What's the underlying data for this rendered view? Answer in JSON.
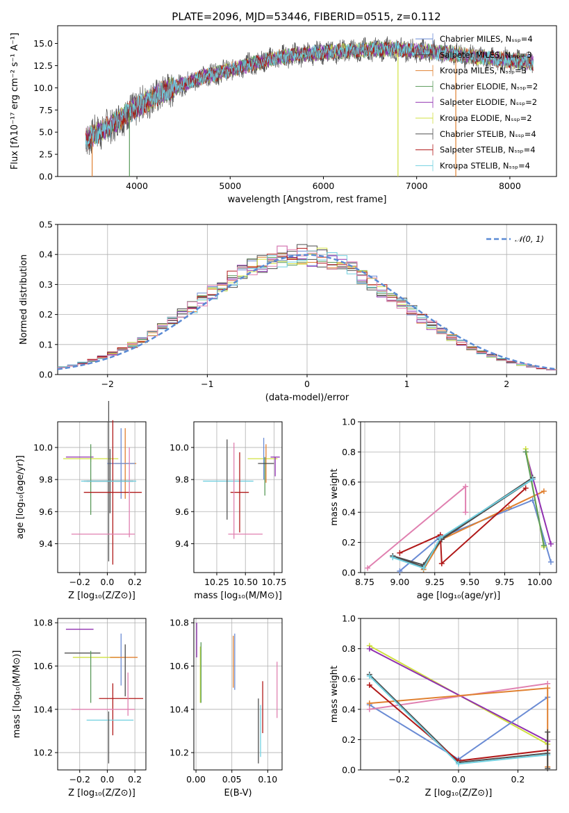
{
  "figure": {
    "title": "PLATE=2096, MJD=53446, FIBERID=0515, z=0.112"
  },
  "colors": {
    "Chabrier MILES": "#6a8bd4",
    "Salpeter MILES": "#4a4a4a",
    "Kroupa MILES": "#e08030",
    "Chabrier ELODIE": "#5a9a5a",
    "Salpeter ELODIE": "#9030b0",
    "Kroupa ELODIE": "#d0e040",
    "Chabrier STELIB": "#505050",
    "Salpeter STELIB": "#b01818",
    "Kroupa STELIB": "#70d0e0",
    "pink": "#e080b0",
    "gaussian": "#5a8ad4",
    "grid": "#b0b0b0"
  },
  "chart_data": [
    {
      "id": "spectrum",
      "type": "line",
      "xlabel": "wavelength [Angstrom, rest frame]",
      "ylabel": "Flux [fλ10⁻¹⁷ erg cm⁻² s⁻¹ A⁻¹]",
      "xlim": [
        3150,
        8500
      ],
      "ylim": [
        0,
        17
      ],
      "xticks": [
        "4000",
        "5000",
        "6000",
        "7000",
        "8000"
      ],
      "yticks": [
        "0.0",
        "2.5",
        "5.0",
        "7.5",
        "10.0",
        "12.5",
        "15.0"
      ],
      "legend_position": "upper right",
      "series": [
        {
          "name": "Chabrier MILES, Nₛₛₚ=4",
          "color": "Chabrier MILES"
        },
        {
          "name": "Salpeter MILES, Nₛₛₚ=3",
          "color": "Salpeter MILES"
        },
        {
          "name": "Kroupa MILES, Nₛₛₚ=3",
          "color": "Kroupa MILES"
        },
        {
          "name": "Chabrier ELODIE, Nₛₛₚ=2",
          "color": "Chabrier ELODIE"
        },
        {
          "name": "Salpeter ELODIE, Nₛₛₚ=2",
          "color": "Salpeter ELODIE"
        },
        {
          "name": "Kroupa ELODIE, Nₛₛₚ=2",
          "color": "Kroupa ELODIE"
        },
        {
          "name": "Chabrier STELIB, Nₛₛₚ=4",
          "color": "Chabrier STELIB"
        },
        {
          "name": "Salpeter STELIB, Nₛₛₚ=4",
          "color": "Salpeter STELIB"
        },
        {
          "name": "Kroupa STELIB, Nₛₛₚ=4",
          "color": "Kroupa STELIB"
        }
      ],
      "continuum": [
        [
          3450,
          4.2
        ],
        [
          3700,
          5.6
        ],
        [
          4000,
          7.8
        ],
        [
          4300,
          9.6
        ],
        [
          4700,
          11.2
        ],
        [
          5100,
          12.3
        ],
        [
          5500,
          13.4
        ],
        [
          5900,
          13.9
        ],
        [
          6300,
          14.2
        ],
        [
          6700,
          14.4
        ],
        [
          7000,
          14.2
        ],
        [
          7400,
          13.8
        ],
        [
          7800,
          13.3
        ],
        [
          8250,
          12.8
        ]
      ],
      "vertical_drops": [
        {
          "x": 3520,
          "color": "Kroupa MILES"
        },
        {
          "x": 3920,
          "color": "Chabrier ELODIE"
        },
        {
          "x": 6800,
          "color": "Kroupa ELODIE"
        },
        {
          "x": 7420,
          "color": "Kroupa MILES"
        }
      ]
    },
    {
      "id": "residuals",
      "type": "histogram",
      "xlabel": "(data-model)/error",
      "ylabel": "Normed distribution",
      "xlim": [
        -2.5,
        2.5
      ],
      "ylim": [
        0,
        0.5
      ],
      "xticks": [
        "−2",
        "−1",
        "0",
        "1",
        "2"
      ],
      "yticks": [
        "0.0",
        "0.1",
        "0.2",
        "0.3",
        "0.4",
        "0.5"
      ],
      "legend": "𝒩(0, 1)",
      "bin_width": 0.1,
      "base_curve": "gaussian"
    },
    {
      "id": "age-vs-Z",
      "type": "scatter",
      "xlabel": "Z [log₁₀(Z/Z⊙)]",
      "ylabel": "age  [log₁₀(age/yr)]",
      "xlim": [
        -0.36,
        0.28
      ],
      "ylim": [
        9.22,
        10.16
      ],
      "xticks": [
        "−0.2",
        "0.0",
        "0.2"
      ],
      "xtick_values": [
        -0.2,
        0.0,
        0.2
      ],
      "yticks": [
        "9.4",
        "9.6",
        "9.8",
        "10.0"
      ],
      "ytick_values": [
        9.4,
        9.6,
        9.8,
        10.0
      ],
      "points": [
        {
          "x": -0.12,
          "xerr": 0.2,
          "y": 9.93,
          "yerr": 0.02,
          "color": "Kroupa ELODIE"
        },
        {
          "x": -0.2,
          "xerr": 0.1,
          "y": 9.94,
          "yerr": 0.01,
          "color": "Salpeter ELODIE"
        },
        {
          "x": -0.12,
          "xerr": 0.01,
          "y": 9.8,
          "yerr": 0.22,
          "color": "Chabrier ELODIE"
        },
        {
          "x": 0.13,
          "xerr": 0.08,
          "y": 9.9,
          "yerr": 0.22,
          "color": "Kroupa MILES"
        },
        {
          "x": 0.1,
          "xerr": 0.1,
          "y": 9.9,
          "yerr": 0.22,
          "color": "Chabrier MILES"
        },
        {
          "x": 0.02,
          "xerr": 0.17,
          "y": 9.79,
          "yerr": 0.2,
          "color": "Salpeter MILES"
        },
        {
          "x": 0.01,
          "xerr": 0.18,
          "y": 9.79,
          "yerr": 0.5,
          "color": "Chabrier STELIB"
        },
        {
          "x": 0.04,
          "xerr": 0.21,
          "y": 9.72,
          "yerr": 0.45,
          "color": "Salpeter STELIB"
        },
        {
          "x": 0.16,
          "xerr": 0.01,
          "y": 9.72,
          "yerr": 0.28,
          "color": "pink"
        },
        {
          "x": -0.03,
          "xerr": 0.23,
          "y": 9.46,
          "yerr": 0.01,
          "color": "pink"
        },
        {
          "x": 0.01,
          "xerr": 0.2,
          "y": 9.79,
          "yerr": 0.01,
          "color": "Kroupa STELIB"
        }
      ]
    },
    {
      "id": "age-vs-mass",
      "type": "scatter",
      "xlabel": "mass [log₁₀(M/M⊙)]",
      "xlim": [
        10.05,
        10.82
      ],
      "ylim": [
        9.22,
        10.16
      ],
      "xticks": [
        "10.25",
        "10.50",
        "10.75"
      ],
      "xtick_values": [
        10.25,
        10.5,
        10.75
      ],
      "yticks": [
        "9.4",
        "9.6",
        "9.8",
        "10.0"
      ],
      "ytick_values": [
        9.4,
        9.6,
        9.8,
        10.0
      ],
      "points": [
        {
          "x": 10.35,
          "xerr": 0.22,
          "y": 9.79,
          "yerr": 0.01,
          "color": "Kroupa STELIB"
        },
        {
          "x": 10.34,
          "xerr": 0.01,
          "y": 9.8,
          "yerr": 0.25,
          "color": "Chabrier STELIB"
        },
        {
          "x": 10.45,
          "xerr": 0.08,
          "y": 9.72,
          "yerr": 0.25,
          "color": "Salpeter STELIB"
        },
        {
          "x": 10.4,
          "xerr": 0.01,
          "y": 9.73,
          "yerr": 0.3,
          "color": "pink"
        },
        {
          "x": 10.5,
          "xerr": 0.15,
          "y": 9.46,
          "yerr": 0.01,
          "color": "pink"
        },
        {
          "x": 10.65,
          "xerr": 0.13,
          "y": 9.93,
          "yerr": 0.01,
          "color": "Kroupa ELODIE"
        },
        {
          "x": 10.66,
          "xerr": 0.01,
          "y": 9.93,
          "yerr": 0.13,
          "color": "Chabrier MILES"
        },
        {
          "x": 10.68,
          "xerr": 0.01,
          "y": 9.9,
          "yerr": 0.12,
          "color": "Kroupa MILES"
        },
        {
          "x": 10.67,
          "xerr": 0.01,
          "y": 9.82,
          "yerr": 0.12,
          "color": "Chabrier ELODIE"
        },
        {
          "x": 10.76,
          "xerr": 0.04,
          "y": 9.94,
          "yerr": 0.01,
          "color": "Salpeter ELODIE"
        },
        {
          "x": 10.76,
          "xerr": 0.01,
          "y": 9.88,
          "yerr": 0.06,
          "color": "Salpeter ELODIE"
        },
        {
          "x": 10.68,
          "xerr": 0.07,
          "y": 9.9,
          "yerr": 0.01,
          "color": "Salpeter MILES"
        }
      ]
    },
    {
      "id": "weight-vs-age",
      "type": "line",
      "xlabel": "age  [log₁₀(age/yr)]",
      "ylabel": "mass weight",
      "xlim": [
        8.72,
        10.12
      ],
      "ylim": [
        0,
        1.0
      ],
      "xticks": [
        "8.75",
        "9.00",
        "9.25",
        "9.50",
        "9.75",
        "10.00"
      ],
      "xtick_values": [
        8.75,
        9.0,
        9.25,
        9.5,
        9.75,
        10.0
      ],
      "yticks": [
        "0.0",
        "0.2",
        "0.4",
        "0.6",
        "0.8",
        "1.0"
      ],
      "ytick_values": [
        0,
        0.2,
        0.4,
        0.6,
        0.8,
        1.0
      ],
      "series": [
        {
          "color": "pink",
          "x": [
            8.77,
            9.47,
            9.47
          ],
          "y": [
            0.03,
            0.57,
            0.4
          ]
        },
        {
          "color": "Chabrier MILES",
          "x": [
            9.0,
            9.28,
            9.95,
            10.08
          ],
          "y": [
            0.01,
            0.23,
            0.48,
            0.07
          ]
        },
        {
          "color": "Kroupa MILES",
          "x": [
            9.17,
            9.3,
            9.78,
            10.03
          ],
          "y": [
            0.02,
            0.22,
            0.43,
            0.54
          ]
        },
        {
          "color": "Salpeter MILES",
          "x": [
            8.95,
            9.16,
            9.3,
            9.95
          ],
          "y": [
            0.11,
            0.04,
            0.22,
            0.62
          ]
        },
        {
          "color": "Salpeter ELODIE",
          "x": [
            9.9,
            10.08
          ],
          "y": [
            0.8,
            0.19
          ]
        },
        {
          "color": "Kroupa ELODIE",
          "x": [
            9.9,
            10.03
          ],
          "y": [
            0.82,
            0.17
          ]
        },
        {
          "color": "Chabrier ELODIE",
          "x": [
            9.9,
            10.03
          ],
          "y": [
            0.8,
            0.18
          ]
        },
        {
          "color": "Chabrier STELIB",
          "x": [
            8.95,
            9.17,
            9.29,
            9.95
          ],
          "y": [
            0.11,
            0.05,
            0.22,
            0.63
          ]
        },
        {
          "color": "Salpeter STELIB",
          "x": [
            9.0,
            9.29,
            9.3,
            9.9
          ],
          "y": [
            0.13,
            0.25,
            0.06,
            0.56
          ]
        },
        {
          "color": "Kroupa STELIB",
          "x": [
            8.95,
            9.17,
            9.29,
            9.95
          ],
          "y": [
            0.1,
            0.03,
            0.23,
            0.62
          ]
        }
      ]
    },
    {
      "id": "mass-vs-Z",
      "type": "scatter",
      "xlabel": "Z [log₁₀(Z/Z⊙)]",
      "ylabel": "mass [log₁₀(M/M⊙)]",
      "xlim": [
        -0.36,
        0.28
      ],
      "ylim": [
        10.12,
        10.82
      ],
      "xticks": [
        "−0.2",
        "0.0",
        "0.2"
      ],
      "xtick_values": [
        -0.2,
        0.0,
        0.2
      ],
      "yticks": [
        "10.2",
        "10.4",
        "10.6",
        "10.8"
      ],
      "ytick_values": [
        10.2,
        10.4,
        10.6,
        10.8
      ],
      "points": [
        {
          "x": -0.2,
          "xerr": 0.1,
          "y": 10.77,
          "yerr": 0.01,
          "color": "Salpeter ELODIE"
        },
        {
          "x": -0.18,
          "xerr": 0.13,
          "y": 10.66,
          "yerr": 0.01,
          "color": "Chabrier STELIB"
        },
        {
          "x": -0.08,
          "xerr": 0.17,
          "y": 10.64,
          "yerr": 0.01,
          "color": "Kroupa ELODIE"
        },
        {
          "x": -0.12,
          "xerr": 0.01,
          "y": 10.55,
          "yerr": 0.12,
          "color": "Chabrier ELODIE"
        },
        {
          "x": 0.1,
          "xerr": 0.01,
          "y": 10.63,
          "yerr": 0.12,
          "color": "Chabrier MILES"
        },
        {
          "x": 0.12,
          "xerr": 0.1,
          "y": 10.64,
          "yerr": 0.01,
          "color": "Kroupa MILES"
        },
        {
          "x": 0.13,
          "xerr": 0.01,
          "y": 10.58,
          "yerr": 0.12,
          "color": "Salpeter MILES"
        },
        {
          "x": 0.1,
          "xerr": 0.16,
          "y": 10.45,
          "yerr": 0.01,
          "color": "Salpeter STELIB"
        },
        {
          "x": 0.04,
          "xerr": 0.01,
          "y": 10.4,
          "yerr": 0.12,
          "color": "Salpeter STELIB"
        },
        {
          "x": 0.15,
          "xerr": 0.01,
          "y": 10.47,
          "yerr": 0.1,
          "color": "pink"
        },
        {
          "x": -0.03,
          "xerr": 0.23,
          "y": 10.4,
          "yerr": 0.01,
          "color": "pink"
        },
        {
          "x": 0.02,
          "xerr": 0.17,
          "y": 10.35,
          "yerr": 0.01,
          "color": "Kroupa STELIB"
        },
        {
          "x": 0.01,
          "xerr": 0.01,
          "y": 10.27,
          "yerr": 0.12,
          "color": "Chabrier STELIB"
        }
      ]
    },
    {
      "id": "mass-vs-ebv",
      "type": "scatter",
      "xlabel": "E(B-V)",
      "xlim": [
        -0.003,
        0.12
      ],
      "ylim": [
        10.12,
        10.82
      ],
      "xticks": [
        "0.00",
        "0.05",
        "0.10"
      ],
      "xtick_values": [
        0,
        0.05,
        0.1
      ],
      "yticks": [
        "10.2",
        "10.4",
        "10.6",
        "10.8"
      ],
      "ytick_values": [
        10.2,
        10.4,
        10.6,
        10.8
      ],
      "points": [
        {
          "x": 0.001,
          "xerr": 0,
          "y": 10.72,
          "yerr": 0.08,
          "color": "Salpeter ELODIE"
        },
        {
          "x": 0.006,
          "xerr": 0,
          "y": 10.56,
          "yerr": 0.13,
          "color": "Kroupa ELODIE"
        },
        {
          "x": 0.007,
          "xerr": 0,
          "y": 10.57,
          "yerr": 0.14,
          "color": "Chabrier ELODIE"
        },
        {
          "x": 0.052,
          "xerr": 0,
          "y": 10.62,
          "yerr": 0.12,
          "color": "Kroupa MILES"
        },
        {
          "x": 0.054,
          "xerr": 0,
          "y": 10.62,
          "yerr": 0.13,
          "color": "Chabrier MILES"
        },
        {
          "x": 0.087,
          "xerr": 0,
          "y": 10.3,
          "yerr": 0.15,
          "color": "Chabrier STELIB"
        },
        {
          "x": 0.09,
          "xerr": 0,
          "y": 10.3,
          "yerr": 0.12,
          "color": "Kroupa STELIB"
        },
        {
          "x": 0.093,
          "xerr": 0,
          "y": 10.41,
          "yerr": 0.12,
          "color": "Salpeter STELIB"
        },
        {
          "x": 0.113,
          "xerr": 0,
          "y": 10.49,
          "yerr": 0.13,
          "color": "pink"
        }
      ]
    },
    {
      "id": "weight-vs-Z",
      "type": "line",
      "xlabel": "Z [log₁₀(Z/Z⊙)]",
      "ylabel": "mass weight",
      "xlim": [
        -0.33,
        0.33
      ],
      "ylim": [
        0,
        1.0
      ],
      "xticks": [
        "−0.2",
        "0.0",
        "0.2"
      ],
      "xtick_values": [
        -0.2,
        0.0,
        0.2
      ],
      "yticks": [
        "0.0",
        "0.2",
        "0.4",
        "0.6",
        "0.8",
        "1.0"
      ],
      "ytick_values": [
        0,
        0.2,
        0.4,
        0.6,
        0.8,
        1.0
      ],
      "series": [
        {
          "color": "Kroupa ELODIE",
          "x": [
            -0.3,
            0.3
          ],
          "y": [
            0.82,
            0.17
          ]
        },
        {
          "color": "Salpeter ELODIE",
          "x": [
            -0.3,
            0.3
          ],
          "y": [
            0.8,
            0.19
          ]
        },
        {
          "color": "Chabrier MILES",
          "x": [
            -0.3,
            0.0,
            0.3
          ],
          "y": [
            0.43,
            0.07,
            0.48
          ]
        },
        {
          "color": "pink",
          "x": [
            -0.3,
            0.3
          ],
          "y": [
            0.4,
            0.57
          ]
        },
        {
          "color": "Kroupa MILES",
          "x": [
            -0.3,
            0.3,
            0.3
          ],
          "y": [
            0.44,
            0.54,
            0.02
          ]
        },
        {
          "color": "Chabrier STELIB",
          "x": [
            -0.3,
            0.0,
            0.3
          ],
          "y": [
            0.63,
            0.05,
            0.11
          ]
        },
        {
          "color": "Salpeter STELIB",
          "x": [
            -0.3,
            0.0,
            0.3
          ],
          "y": [
            0.56,
            0.06,
            0.13
          ]
        },
        {
          "color": "Kroupa STELIB",
          "x": [
            -0.3,
            0.0,
            0.3
          ],
          "y": [
            0.62,
            0.04,
            0.1
          ]
        },
        {
          "color": "Salpeter MILES",
          "x": [
            0.3,
            0.3
          ],
          "y": [
            0.25,
            0.01
          ]
        }
      ]
    }
  ]
}
